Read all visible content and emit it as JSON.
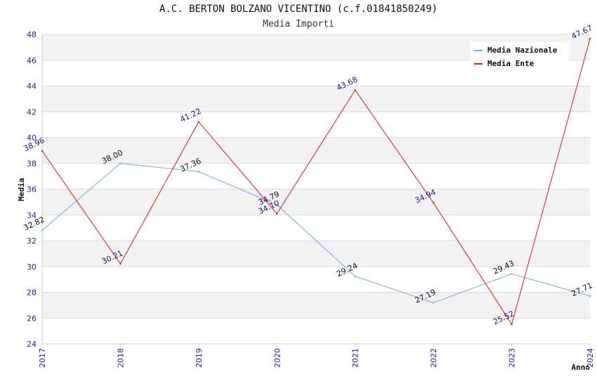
{
  "chart_data": {
    "type": "line",
    "title": "A.C. BERTON BOLZANO VICENTINO (c.f.01841850249)",
    "subtitle": "Media Importi",
    "xlabel": "Anno",
    "ylabel": "Media",
    "x": [
      "2017",
      "2018",
      "2019",
      "2020",
      "2021",
      "2022",
      "2023",
      "2024"
    ],
    "ylim": [
      24,
      48
    ],
    "yticks": [
      24,
      26,
      28,
      30,
      32,
      34,
      36,
      38,
      40,
      42,
      44,
      46,
      48
    ],
    "grid": true,
    "legend_position": "top-right",
    "series": [
      {
        "name": "Media Nazionale",
        "color": "#6aaee8",
        "label_color": "#111111",
        "values": [
          32.82,
          38.0,
          37.36,
          34.79,
          29.24,
          27.19,
          29.43,
          27.71
        ],
        "labels": [
          "32.82",
          "38.00",
          "37.36",
          "34.79",
          "29.24",
          "27.19",
          "29.43",
          "27.71"
        ]
      },
      {
        "name": "Media Ente",
        "color": "#e8141c",
        "label_color": "#1a1a8c",
        "values": [
          38.96,
          30.21,
          41.22,
          34.1,
          43.68,
          34.94,
          25.52,
          47.67
        ],
        "labels": [
          "38.96",
          "30.21",
          "41.22",
          "34.10",
          "43.68",
          "34.94",
          "25.52",
          "47.67"
        ]
      }
    ]
  }
}
